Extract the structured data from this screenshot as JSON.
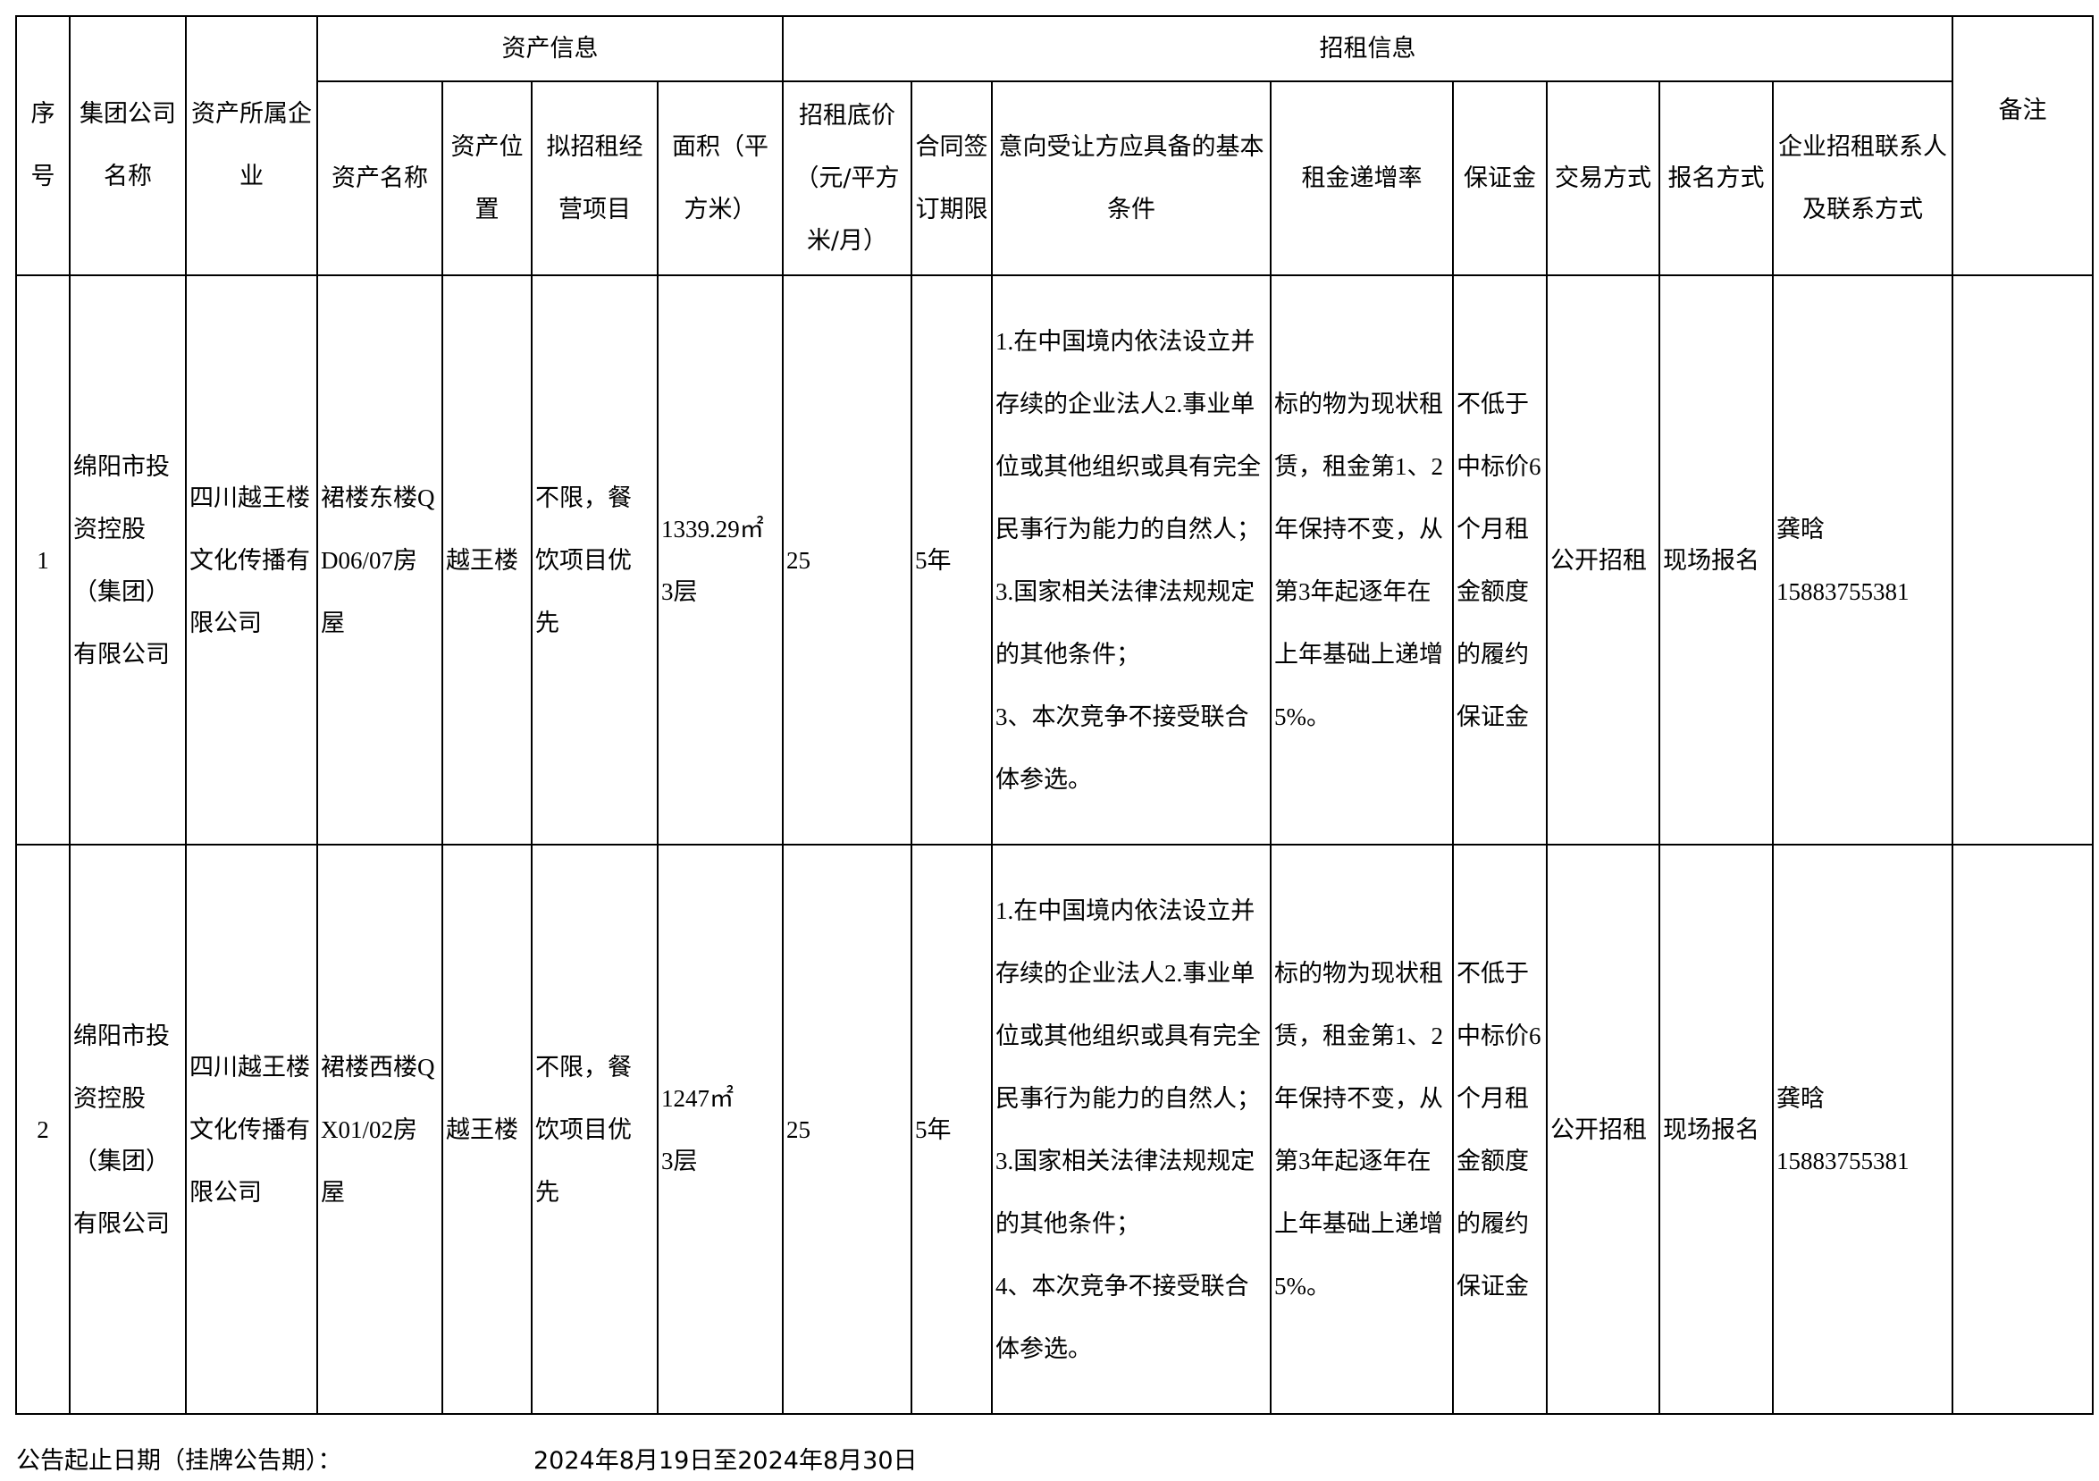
{
  "table": {
    "group_headers": {
      "asset_info": "资产信息",
      "rental_info": "招租信息"
    },
    "headers": {
      "seq": "序号",
      "group_company": "集团公司名称",
      "asset_owner": "资产所属企业",
      "asset_name": "资产名称",
      "asset_location": "资产位置",
      "business": "拟招租经营项目",
      "area": "面积（平方米）",
      "base_price": "招租底价（元/平方米/月）",
      "term": "合同签订期限",
      "conditions": "意向受让方应具备的基本条件",
      "increase_rate": "租金递增率",
      "deposit": "保证金",
      "trade_method": "交易方式",
      "signup_method": "报名方式",
      "contact": "企业招租联系人及联系方式",
      "remarks": "备注"
    },
    "rows": [
      {
        "seq": "1",
        "group_company": "绵阳市投资控股（集团）有限公司",
        "asset_owner": "四川越王楼文化传播有限公司",
        "asset_name": "裙楼东楼QD06/07房屋",
        "asset_location": "越王楼",
        "business": "不限，餐饮项目优先",
        "area": "1339.29㎡",
        "floor": "3层",
        "base_price": "25",
        "term": "5年",
        "conditions": [
          "1.在中国境内依法设立并存续的企业法人2.事业单位或其他组织或具有完全民事行为能力的自然人；",
          "3.国家相关法律法规规定的其他条件；",
          "3、本次竞争不接受联合体参选。"
        ],
        "increase_rate": "标的物为现状租赁，租金第1、2年保持不变，从第3年起逐年在上年基础上递增5%。",
        "deposit": "不低于中标价6个月租金额度的履约保证金",
        "trade_method": "公开招租",
        "signup_method": "现场报名",
        "contact_name": "龚晗",
        "contact_phone": "15883755381",
        "remarks": ""
      },
      {
        "seq": "2",
        "group_company": "绵阳市投资控股（集团）有限公司",
        "asset_owner": "四川越王楼文化传播有限公司",
        "asset_name": "裙楼西楼QX01/02房屋",
        "asset_location": "越王楼",
        "business": "不限，餐饮项目优先",
        "area": "1247㎡",
        "floor": "3层",
        "base_price": "25",
        "term": "5年",
        "conditions": [
          "1.在中国境内依法设立并存续的企业法人2.事业单位或其他组织或具有完全民事行为能力的自然人；",
          "3.国家相关法律法规规定的其他条件；",
          "4、本次竞争不接受联合体参选。"
        ],
        "increase_rate": "标的物为现状租赁，租金第1、2年保持不变，从第3年起逐年在上年基础上递增5%。",
        "deposit": "不低于中标价6个月租金额度的履约保证金",
        "trade_method": "公开招租",
        "signup_method": "现场报名",
        "contact_name": "龚晗",
        "contact_phone": "15883755381",
        "remarks": ""
      }
    ]
  },
  "footer": {
    "label": "公告起止日期（挂牌公告期）：",
    "value": "2024年8月19日至2024年8月30日"
  }
}
